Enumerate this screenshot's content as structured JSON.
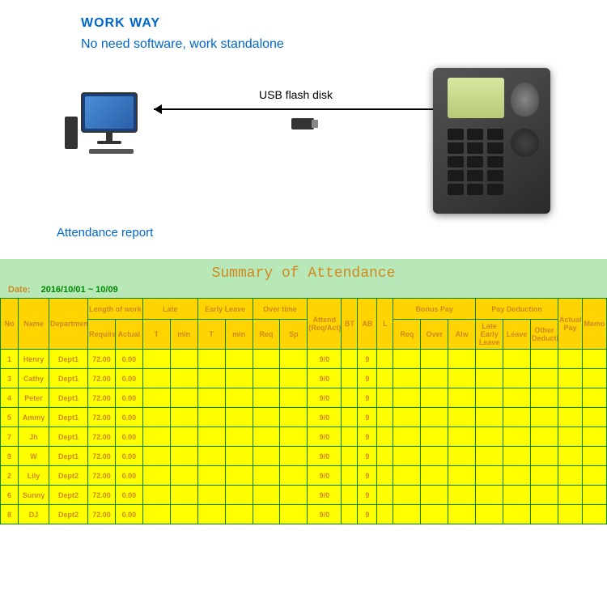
{
  "header": {
    "title": "WORK WAY",
    "subtitle": "No need software, work standalone",
    "usb_label": "USB flash disk",
    "report_label": "Attendance report"
  },
  "report": {
    "title": "Summary of Attendance",
    "date_label": "Date:",
    "date_value": "2016/10/01 ~ 10/09"
  },
  "table": {
    "headers": {
      "no": "No",
      "name": "Name",
      "department": "Department",
      "length_of_work": "Length of work",
      "required": "Required",
      "actual": "Actual",
      "late": "Late",
      "early_leave": "Early Leave",
      "t": "T",
      "min": "min",
      "over_time": "Over time",
      "req": "Req",
      "sp": "Sp",
      "attend": "Attend (Req/Act)",
      "bt": "BT",
      "ab": "AB",
      "l": "L",
      "bonus_pay": "Bonus Pay",
      "over": "Over",
      "alw": "Alw",
      "pay_deduction": "Pay Deduction",
      "late_early_leave": "Late Early Leave",
      "leave": "Leave",
      "other_deduction": "Other Deduction",
      "actual_pay": "Actual Pay",
      "memo": "Memo"
    },
    "rows": [
      {
        "no": "1",
        "name": "Henry",
        "dept": "Dept1",
        "req": "72.00",
        "act": "0.00",
        "att": "9/0",
        "ab": "9"
      },
      {
        "no": "3",
        "name": "Cathy",
        "dept": "Dept1",
        "req": "72.00",
        "act": "0.00",
        "att": "9/0",
        "ab": "9"
      },
      {
        "no": "4",
        "name": "Peter",
        "dept": "Dept1",
        "req": "72.00",
        "act": "0.00",
        "att": "9/0",
        "ab": "9"
      },
      {
        "no": "5",
        "name": "Ammy",
        "dept": "Dept1",
        "req": "72.00",
        "act": "0.00",
        "att": "9/0",
        "ab": "9"
      },
      {
        "no": "7",
        "name": "Jh",
        "dept": "Dept1",
        "req": "72.00",
        "act": "0.00",
        "att": "9/0",
        "ab": "9"
      },
      {
        "no": "9",
        "name": "W",
        "dept": "Dept1",
        "req": "72.00",
        "act": "0.00",
        "att": "9/0",
        "ab": "9"
      },
      {
        "no": "2",
        "name": "Lily",
        "dept": "Dept2",
        "req": "72.00",
        "act": "0.00",
        "att": "9/0",
        "ab": "9"
      },
      {
        "no": "6",
        "name": "Sunny",
        "dept": "Dept2",
        "req": "72.00",
        "act": "0.00",
        "att": "9/0",
        "ab": "9"
      },
      {
        "no": "8",
        "name": "DJ",
        "dept": "Dept2",
        "req": "72.00",
        "act": "0.00",
        "att": "9/0",
        "ab": "9"
      }
    ]
  },
  "colors": {
    "header_bg": "#ffd400",
    "cell_bg": "#ffff00",
    "border": "#008800",
    "text": "#d08820",
    "report_bg": "#b8e8b8",
    "link_blue": "#0066cc"
  }
}
